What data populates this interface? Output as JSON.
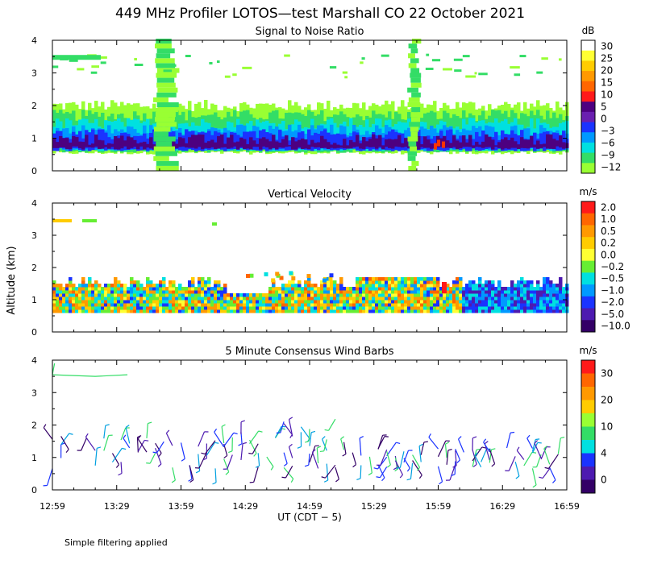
{
  "title": "449 MHz Profiler LOTOS—test Marshall CO 22 October 2021",
  "ylabel": "Altitude (km)",
  "xlabel": "UT  (CDT − 5)",
  "footnote": "Simple filtering applied",
  "x_ticks": [
    "12:59",
    "13:29",
    "13:59",
    "14:29",
    "14:59",
    "15:29",
    "15:59",
    "16:29",
    "16:59"
  ],
  "chart_data": [
    {
      "type": "heatmap",
      "title": "Signal to Noise Ratio",
      "unit": "dB",
      "xlim": [
        "12:59",
        "16:59"
      ],
      "ylim": [
        0,
        4
      ],
      "y_ticks": [
        0,
        1,
        2,
        3,
        4
      ],
      "colorbar": {
        "labels": [
          "30",
          "25",
          "20",
          "15",
          "10",
          "5",
          "0",
          "−3",
          "−6",
          "−9",
          "−12"
        ],
        "colors": [
          "#ffffff",
          "#ffff33",
          "#ffcc00",
          "#ff9900",
          "#ff6600",
          "#ff1a1a",
          "#4d0080",
          "#6a1fb0",
          "#1a33ff",
          "#0099ff",
          "#00e0e0",
          "#33dd66",
          "#99ff33"
        ]
      }
    },
    {
      "type": "heatmap",
      "title": "Vertical Velocity",
      "unit": "m/s",
      "xlim": [
        "12:59",
        "16:59"
      ],
      "ylim": [
        0,
        4
      ],
      "y_ticks": [
        0,
        1,
        2,
        3,
        4
      ],
      "colorbar": {
        "labels": [
          "2.0",
          "1.0",
          "0.5",
          "0.2",
          "0.0",
          "−0.2",
          "−0.5",
          "−1.0",
          "−2.0",
          "−5.0",
          "−10.0"
        ],
        "colors": [
          "#ff1a1a",
          "#ff6600",
          "#ff9900",
          "#ffcc00",
          "#ffff33",
          "#66ee33",
          "#00e0e0",
          "#0099ff",
          "#1a33ff",
          "#4d1ab0",
          "#330066"
        ]
      }
    },
    {
      "type": "scatter",
      "title": "5 Minute Consensus Wind Barbs",
      "unit": "m/s",
      "xlim": [
        "12:59",
        "16:59"
      ],
      "ylim": [
        0,
        4
      ],
      "y_ticks": [
        0,
        1,
        2,
        3,
        4
      ],
      "colorbar": {
        "labels": [
          "30",
          "20",
          "10",
          "4",
          "0"
        ],
        "colors": [
          "#ff1a1a",
          "#ff6600",
          "#ff9900",
          "#ffcc00",
          "#99ff33",
          "#33dd66",
          "#00e0e0",
          "#1a33ff",
          "#4d1ab0",
          "#330066"
        ]
      }
    }
  ]
}
